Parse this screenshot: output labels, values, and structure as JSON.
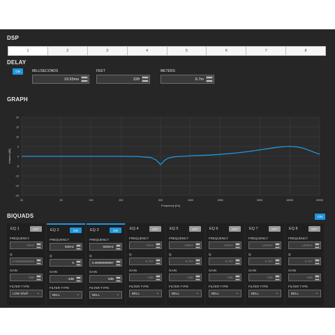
{
  "dsp": {
    "title": "DSP",
    "tabs": [
      "1",
      "2",
      "3",
      "4",
      "5",
      "6",
      "7",
      "8"
    ],
    "active_tab": 0
  },
  "delay": {
    "title": "DELAY",
    "toggle": "ON",
    "milliseconds": {
      "label": "MILLISECONDS",
      "value": "19.55ms"
    },
    "feet": {
      "label": "FEET",
      "value": "22ft"
    },
    "meters": {
      "label": "METERS",
      "value": "6.7m"
    }
  },
  "graph": {
    "title": "GRAPH"
  },
  "chart_data": {
    "type": "line",
    "xlabel": "Frequency [Hz]",
    "ylabel": "Volume [dB]",
    "xscale": "log",
    "xlim": [
      20,
      20000
    ],
    "ylim": [
      -20,
      20
    ],
    "x_ticks": [
      "20",
      "50",
      "100",
      "200",
      "500",
      "1000",
      "2000",
      "5000",
      "10000",
      "20000"
    ],
    "x_tick_values": [
      20,
      50,
      100,
      200,
      500,
      1000,
      2000,
      5000,
      10000,
      20000
    ],
    "y_ticks": [
      "20",
      "15",
      "10",
      "5",
      "0",
      "-5",
      "-10",
      "-15",
      "-20"
    ],
    "y_tick_values": [
      20,
      15,
      10,
      5,
      0,
      -5,
      -10,
      -15,
      -20
    ],
    "grid": true,
    "series": [
      {
        "color": "#1f97df",
        "x": [
          20,
          50,
          100,
          200,
          300,
          400,
          450,
          480,
          500,
          520,
          550,
          600,
          700,
          900,
          1000,
          1500,
          2000,
          3000,
          4000,
          5000,
          6000,
          7000,
          8000,
          9000,
          10000,
          12000,
          14000,
          16000,
          18000,
          20000
        ],
        "y": [
          0,
          0,
          0,
          0,
          -0.1,
          -0.6,
          -1.8,
          -3.2,
          -4.2,
          -3.4,
          -2.0,
          -0.9,
          -0.2,
          0.1,
          0.3,
          0.6,
          1.0,
          1.8,
          2.6,
          3.3,
          3.9,
          4.4,
          4.8,
          5.0,
          5.1,
          4.8,
          4.0,
          2.9,
          1.9,
          1.1
        ]
      }
    ]
  },
  "biquads": {
    "title": "BIQUADS",
    "toggle": "ON",
    "labels": {
      "frequency": "FREQUENCY",
      "q": "Q",
      "gain": "GAIN",
      "filter_type": "FILTER TYPE"
    },
    "eqs": [
      {
        "name": "EQ 1",
        "state": "OFF",
        "frequency": "50Hz",
        "q": "0.66999999999",
        "gain": "0dB",
        "filter": "LOW Shelf"
      },
      {
        "name": "EQ 2",
        "state": "ON",
        "frequency": "500Hz",
        "q": "5",
        "gain": "-4dB",
        "filter": "BELL"
      },
      {
        "name": "EQ 3",
        "state": "ON",
        "frequency": "5000Hz",
        "q": "0.66999999997",
        "gain": "5dB",
        "filter": "BELL"
      },
      {
        "name": "EQ 4",
        "state": "OFF",
        "frequency": "20Hz",
        "q": "0.707",
        "gain": "0dB",
        "filter": "BELL"
      },
      {
        "name": "EQ 5",
        "state": "OFF",
        "frequency": "100Hz",
        "q": "0.707",
        "gain": "0dB",
        "filter": "BELL"
      },
      {
        "name": "EQ 6",
        "state": "OFF",
        "frequency": "100Hz",
        "q": "0.707",
        "gain": "0dB",
        "filter": "BELL"
      },
      {
        "name": "EQ 7",
        "state": "OFF",
        "frequency": "1220Hz",
        "q": "0.707",
        "gain": "0dB",
        "filter": "BELL"
      },
      {
        "name": "EQ 8",
        "state": "OFF",
        "frequency": "1400Hz",
        "q": "0.707",
        "gain": "0dB",
        "filter": "BELL"
      }
    ]
  }
}
